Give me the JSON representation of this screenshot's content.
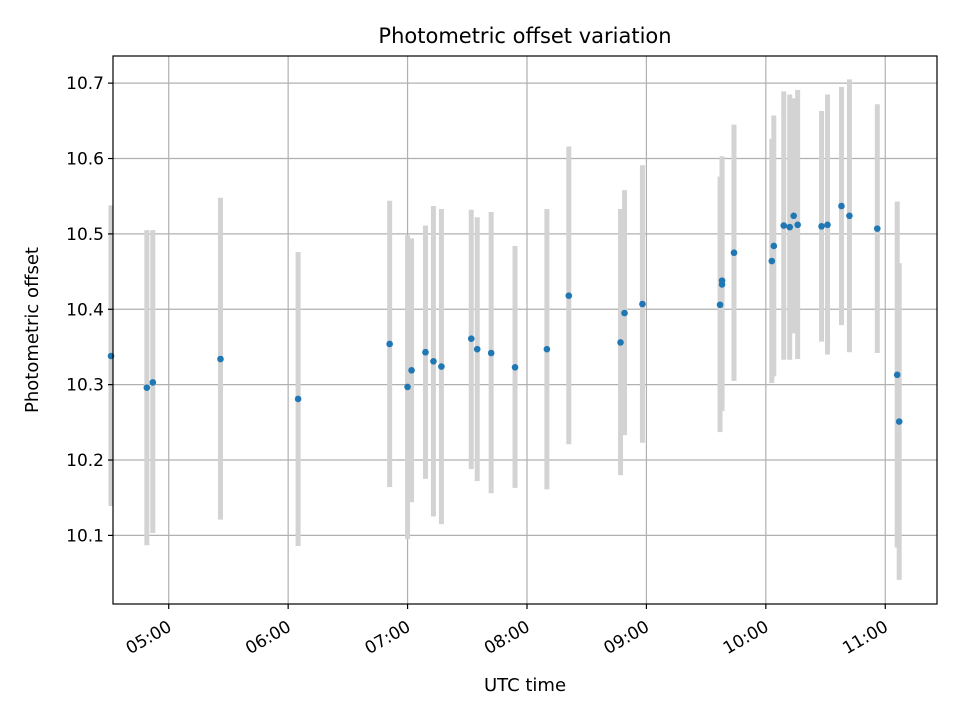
{
  "chart_data": {
    "type": "scatter",
    "title": "Photometric offset variation",
    "xlabel": "UTC time",
    "ylabel": "Photometric offset",
    "xlim": [
      "04:32",
      "11:26"
    ],
    "ylim": [
      10.009,
      10.736
    ],
    "x_ticks": [
      "05:00",
      "06:00",
      "07:00",
      "08:00",
      "09:00",
      "10:00",
      "11:00"
    ],
    "y_ticks": [
      "10.1",
      "10.2",
      "10.3",
      "10.4",
      "10.5",
      "10.6",
      "10.7"
    ],
    "grid": true,
    "marker_color": "#1f77b4",
    "errorbar_color": "#d3d3d3",
    "series": [
      {
        "points": [
          {
            "t": "04:31",
            "y": 10.338,
            "lo": 10.139,
            "hi": 10.538
          },
          {
            "t": "04:49",
            "y": 10.296,
            "lo": 10.087,
            "hi": 10.505
          },
          {
            "t": "04:52",
            "y": 10.303,
            "lo": 10.103,
            "hi": 10.505
          },
          {
            "t": "05:26",
            "y": 10.334,
            "lo": 10.121,
            "hi": 10.548
          },
          {
            "t": "06:05",
            "y": 10.281,
            "lo": 10.086,
            "hi": 10.476
          },
          {
            "t": "06:51",
            "y": 10.354,
            "lo": 10.164,
            "hi": 10.544
          },
          {
            "t": "07:00",
            "y": 10.297,
            "lo": 10.095,
            "hi": 10.498
          },
          {
            "t": "07:02",
            "y": 10.319,
            "lo": 10.144,
            "hi": 10.494
          },
          {
            "t": "07:09",
            "y": 10.343,
            "lo": 10.175,
            "hi": 10.511
          },
          {
            "t": "07:13",
            "y": 10.331,
            "lo": 10.125,
            "hi": 10.537
          },
          {
            "t": "07:17",
            "y": 10.324,
            "lo": 10.115,
            "hi": 10.533
          },
          {
            "t": "07:32",
            "y": 10.361,
            "lo": 10.188,
            "hi": 10.532
          },
          {
            "t": "07:35",
            "y": 10.347,
            "lo": 10.172,
            "hi": 10.522
          },
          {
            "t": "07:42",
            "y": 10.342,
            "lo": 10.156,
            "hi": 10.529
          },
          {
            "t": "07:54",
            "y": 10.323,
            "lo": 10.163,
            "hi": 10.484
          },
          {
            "t": "08:10",
            "y": 10.347,
            "lo": 10.161,
            "hi": 10.533
          },
          {
            "t": "08:21",
            "y": 10.418,
            "lo": 10.221,
            "hi": 10.616
          },
          {
            "t": "08:47",
            "y": 10.356,
            "lo": 10.18,
            "hi": 10.533
          },
          {
            "t": "08:49",
            "y": 10.395,
            "lo": 10.233,
            "hi": 10.558
          },
          {
            "t": "08:58",
            "y": 10.407,
            "lo": 10.223,
            "hi": 10.591
          },
          {
            "t": "09:37",
            "y": 10.406,
            "lo": 10.237,
            "hi": 10.576
          },
          {
            "t": "09:38",
            "y": 10.433,
            "lo": 10.265,
            "hi": 10.601
          },
          {
            "t": "09:38",
            "y": 10.438,
            "lo": 10.274,
            "hi": 10.603
          },
          {
            "t": "09:44",
            "y": 10.475,
            "lo": 10.305,
            "hi": 10.645
          },
          {
            "t": "10:03",
            "y": 10.464,
            "lo": 10.302,
            "hi": 10.626
          },
          {
            "t": "10:04",
            "y": 10.484,
            "lo": 10.311,
            "hi": 10.657
          },
          {
            "t": "10:09",
            "y": 10.511,
            "lo": 10.333,
            "hi": 10.689
          },
          {
            "t": "10:12",
            "y": 10.509,
            "lo": 10.333,
            "hi": 10.685
          },
          {
            "t": "10:14",
            "y": 10.524,
            "lo": 10.368,
            "hi": 10.68
          },
          {
            "t": "10:16",
            "y": 10.512,
            "lo": 10.334,
            "hi": 10.691
          },
          {
            "t": "10:28",
            "y": 10.51,
            "lo": 10.357,
            "hi": 10.663
          },
          {
            "t": "10:31",
            "y": 10.512,
            "lo": 10.34,
            "hi": 10.685
          },
          {
            "t": "10:38",
            "y": 10.537,
            "lo": 10.379,
            "hi": 10.695
          },
          {
            "t": "10:42",
            "y": 10.524,
            "lo": 10.343,
            "hi": 10.705
          },
          {
            "t": "10:56",
            "y": 10.507,
            "lo": 10.342,
            "hi": 10.672
          },
          {
            "t": "11:06",
            "y": 10.313,
            "lo": 10.084,
            "hi": 10.543
          },
          {
            "t": "11:07",
            "y": 10.251,
            "lo": 10.041,
            "hi": 10.461
          }
        ]
      }
    ]
  }
}
